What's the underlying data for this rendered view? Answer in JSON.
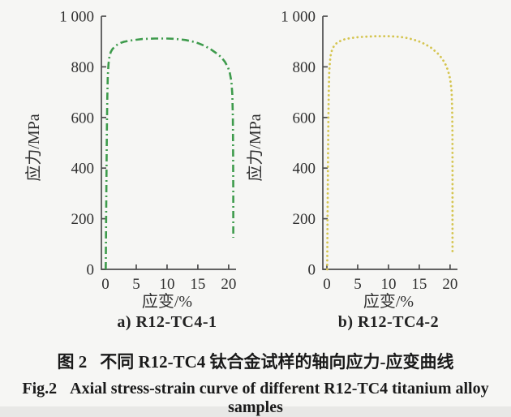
{
  "figure": {
    "caption_zh_prefix": "图 2",
    "caption_zh_text": "不同 R12-TC4 钛合金试样的轴向应力-应变曲线",
    "caption_en_prefix": "Fig.2",
    "caption_en_text": "Axial stress-strain curve of different R12-TC4 titanium alloy samples"
  },
  "chart_data": [
    {
      "type": "line",
      "subplot_label": "a) R12-TC4-1",
      "xlabel": "应变/%",
      "ylabel": "应力/MPa",
      "xlim": [
        -0.66,
        21.2
      ],
      "ylim": [
        0,
        1000
      ],
      "xticks": [
        0,
        5,
        10,
        15,
        20
      ],
      "xtick_labels": [
        "0",
        "5",
        "10",
        "15",
        "20"
      ],
      "yticks": [
        0,
        200,
        400,
        600,
        800,
        1000
      ],
      "ytick_labels": [
        "0",
        "200",
        "400",
        "600",
        "800",
        "1 000"
      ],
      "grid": false,
      "legend_position": "none",
      "line_style": "dash-dot",
      "color": "#3e9b4c",
      "points": [
        [
          0.05,
          0
        ],
        [
          0.1,
          180
        ],
        [
          0.17,
          380
        ],
        [
          0.24,
          560
        ],
        [
          0.3,
          680
        ],
        [
          0.38,
          765
        ],
        [
          0.5,
          812
        ],
        [
          0.65,
          840
        ],
        [
          0.85,
          858
        ],
        [
          1.1,
          869
        ],
        [
          1.5,
          880
        ],
        [
          2.0,
          889
        ],
        [
          2.5,
          895
        ],
        [
          3.0,
          899
        ],
        [
          4.0,
          904
        ],
        [
          5.0,
          907
        ],
        [
          6.0,
          910
        ],
        [
          7.0,
          911
        ],
        [
          8.0,
          912
        ],
        [
          9.0,
          912
        ],
        [
          10.0,
          912
        ],
        [
          11.0,
          911
        ],
        [
          12.0,
          909
        ],
        [
          13.0,
          906
        ],
        [
          14.0,
          901
        ],
        [
          15.0,
          894
        ],
        [
          16.0,
          884
        ],
        [
          17.0,
          871
        ],
        [
          18.0,
          854
        ],
        [
          18.8,
          838
        ],
        [
          19.4,
          820
        ],
        [
          19.9,
          798
        ],
        [
          20.2,
          775
        ],
        [
          20.45,
          742
        ],
        [
          20.6,
          692
        ],
        [
          20.68,
          600
        ],
        [
          20.73,
          460
        ],
        [
          20.75,
          300
        ],
        [
          20.75,
          125
        ]
      ]
    },
    {
      "type": "line",
      "subplot_label": "b) R12-TC4-2",
      "xlabel": "应变/%",
      "ylabel": "应力/MPa",
      "xlim": [
        -0.66,
        21.2
      ],
      "ylim": [
        0,
        1000
      ],
      "xticks": [
        0,
        5,
        10,
        15,
        20
      ],
      "xtick_labels": [
        "0",
        "5",
        "10",
        "15",
        "20"
      ],
      "yticks": [
        0,
        200,
        400,
        600,
        800,
        1000
      ],
      "ytick_labels": [
        "0",
        "200",
        "400",
        "600",
        "800",
        "1 000"
      ],
      "grid": false,
      "legend_position": "none",
      "line_style": "dotted",
      "color": "#d5c551",
      "points": [
        [
          0.05,
          0
        ],
        [
          0.1,
          190
        ],
        [
          0.17,
          400
        ],
        [
          0.24,
          580
        ],
        [
          0.3,
          700
        ],
        [
          0.38,
          780
        ],
        [
          0.5,
          822
        ],
        [
          0.65,
          850
        ],
        [
          0.85,
          868
        ],
        [
          1.1,
          880
        ],
        [
          1.5,
          892
        ],
        [
          2.0,
          900
        ],
        [
          2.5,
          906
        ],
        [
          3.0,
          910
        ],
        [
          4.0,
          914
        ],
        [
          5.0,
          917
        ],
        [
          6.0,
          919
        ],
        [
          7.0,
          920
        ],
        [
          8.0,
          921
        ],
        [
          9.0,
          921
        ],
        [
          10.0,
          921
        ],
        [
          11.0,
          920
        ],
        [
          12.0,
          918
        ],
        [
          13.0,
          914
        ],
        [
          14.0,
          908
        ],
        [
          15.0,
          900
        ],
        [
          16.0,
          889
        ],
        [
          17.0,
          874
        ],
        [
          18.0,
          853
        ],
        [
          18.7,
          833
        ],
        [
          19.2,
          813
        ],
        [
          19.6,
          790
        ],
        [
          19.9,
          765
        ],
        [
          20.1,
          738
        ],
        [
          20.25,
          702
        ],
        [
          20.33,
          640
        ],
        [
          20.38,
          540
        ],
        [
          20.4,
          400
        ],
        [
          20.4,
          230
        ],
        [
          20.4,
          70
        ]
      ]
    }
  ]
}
